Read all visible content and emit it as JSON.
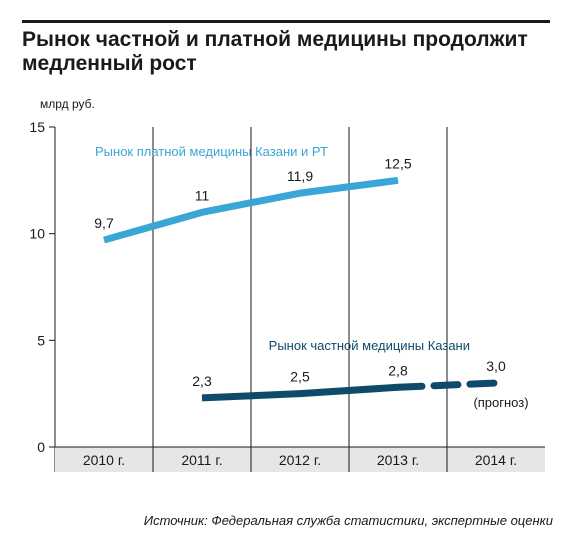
{
  "chart_data": {
    "type": "line",
    "title": "Рынок частной и платной медицины продолжит медленный рост",
    "ylabel": "млрд руб.",
    "xlabel": "",
    "ylim": [
      0,
      15
    ],
    "yticks": [
      "0",
      "5",
      "10",
      "15"
    ],
    "categories": [
      "2010 г.",
      "2011 г.",
      "2012 г.",
      "2013 г.",
      "2014 г."
    ],
    "grid": false,
    "series": [
      {
        "name": "Рынок платной медицины Казани и РТ",
        "color": "#3aa6d6",
        "values": [
          9.7,
          11,
          11.9,
          12.5,
          null
        ],
        "labels": [
          "9,7",
          "11",
          "11,9",
          "12,5",
          ""
        ]
      },
      {
        "name": "Рынок частной медицины Казани",
        "color": "#0f4a6b",
        "values": [
          null,
          2.3,
          2.5,
          2.8,
          3.0
        ],
        "labels": [
          "",
          "2,3",
          "2,5",
          "2,8",
          "3,0"
        ],
        "forecast_from_index": 3,
        "forecast_note": "(прогноз)"
      }
    ],
    "source": "Источник: Федеральная служба статистики, экспертные оценки"
  }
}
